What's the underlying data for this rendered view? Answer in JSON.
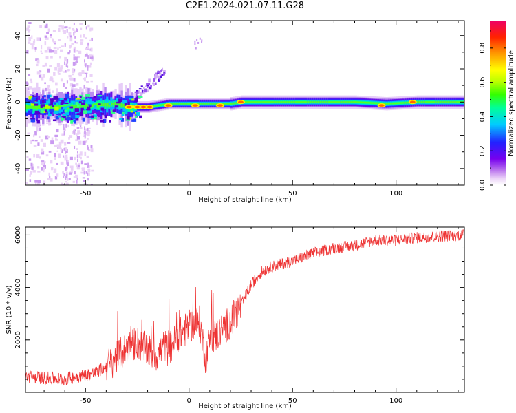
{
  "title": "C2E1.2024.021.07.11.G28",
  "chart_data": [
    {
      "type": "heatmap",
      "xlabel": "Height of straight line (km)",
      "ylabel": "Frequency (Hz)",
      "xlim": [
        -79,
        133
      ],
      "ylim": [
        -50,
        49
      ],
      "xticks": [
        -50,
        0,
        50,
        100
      ],
      "yticks": [
        -40,
        -20,
        0,
        20,
        40
      ],
      "colorbar": {
        "label": "Normalized spectral amplitude",
        "range": [
          0,
          0.96
        ],
        "ticks": [
          0.0,
          0.2,
          0.4,
          0.6,
          0.8
        ],
        "tick_labels": [
          "0.0",
          "0.2",
          "0.4",
          "0.6",
          "0.8"
        ]
      },
      "ridge": {
        "x": [
          -79,
          -60,
          -45,
          -35,
          -30,
          -20,
          -10,
          0,
          10,
          20,
          25,
          40,
          60,
          80,
          95,
          110,
          133
        ],
        "center_hz": [
          -3,
          -3,
          -2,
          -1,
          -3,
          -3,
          -1,
          -1,
          -1,
          -1,
          0,
          0,
          0,
          0,
          -1,
          0,
          0
        ]
      },
      "peaks": [
        {
          "x": -29,
          "y": -3,
          "value": 0.8
        },
        {
          "x": -25,
          "y": -3,
          "value": 0.8
        },
        {
          "x": -22,
          "y": -3,
          "value": 0.8
        },
        {
          "x": -19,
          "y": -3,
          "value": 0.8
        },
        {
          "x": -10,
          "y": -2,
          "value": 0.8
        },
        {
          "x": 3,
          "y": -2,
          "value": 0.8
        },
        {
          "x": 15,
          "y": -2,
          "value": 0.8
        },
        {
          "x": 25,
          "y": 0,
          "value": 0.8
        },
        {
          "x": 93,
          "y": -2,
          "value": 0.8
        },
        {
          "x": 108,
          "y": 0,
          "value": 0.85
        }
      ]
    },
    {
      "type": "line",
      "xlabel": "Height of straight line (km)",
      "ylabel": "SNR (10 * v/v)",
      "xlim": [
        -79,
        133
      ],
      "ylim": [
        0,
        6300
      ],
      "xticks": [
        -50,
        0,
        50,
        100
      ],
      "yticks": [
        2000,
        4000,
        6000
      ],
      "color": "#ee3333",
      "series": [
        {
          "x": [
            -79,
            -70,
            -60,
            -55,
            -50,
            -45,
            -40,
            -35,
            -30,
            -25,
            -20,
            -15,
            -12,
            -10,
            -5,
            0,
            5,
            8,
            10,
            15,
            20,
            25,
            30,
            35,
            40,
            50,
            60,
            70,
            80,
            90,
            100,
            110,
            120,
            133
          ],
          "values": [
            600,
            550,
            500,
            600,
            650,
            750,
            1000,
            1300,
            1700,
            1900,
            1600,
            1400,
            1800,
            1600,
            2200,
            2500,
            2700,
            1300,
            2000,
            2300,
            2700,
            3300,
            4100,
            4600,
            4800,
            5000,
            5300,
            5500,
            5600,
            5800,
            5800,
            5900,
            5950,
            6000
          ]
        }
      ]
    }
  ]
}
